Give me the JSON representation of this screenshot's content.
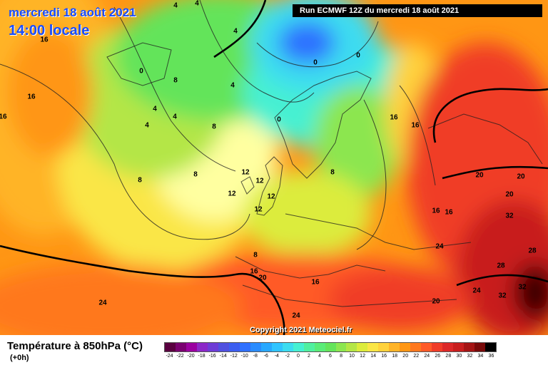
{
  "header": {
    "date": "mercredi 18 août 2021",
    "time": "14:00 locale",
    "run": "Run ECMWF 12Z du mercredi 18 août 2021"
  },
  "copyright": "Copyright 2021 Meteociel.fr",
  "legend": {
    "title": "Température à 850hPa (°C)",
    "subtitle": "(+0h)",
    "ticks": [
      "-24",
      "-22",
      "-20",
      "-18",
      "-16",
      "-14",
      "-12",
      "-10",
      "-8",
      "-6",
      "-4",
      "-2",
      "0",
      "2",
      "4",
      "6",
      "8",
      "10",
      "12",
      "14",
      "16",
      "18",
      "20",
      "22",
      "24",
      "26",
      "28",
      "30",
      "32",
      "34",
      "36"
    ],
    "colors": [
      "#5a0040",
      "#7a0070",
      "#9b00a0",
      "#8c28c8",
      "#6e3cd6",
      "#5050e0",
      "#3c5ef0",
      "#2f70ff",
      "#2a8cff",
      "#28a8ff",
      "#30c4ff",
      "#3cdcf0",
      "#46f0d2",
      "#50f0a0",
      "#5aec78",
      "#64e45a",
      "#8ce650",
      "#b4e646",
      "#dcec3c",
      "#fae646",
      "#ffd23c",
      "#ffb428",
      "#ff9614",
      "#ff781e",
      "#ff5a28",
      "#f03c28",
      "#dc2828",
      "#c81e1e",
      "#a51414",
      "#780a0a",
      "#000000"
    ]
  },
  "isotherm_labels": [
    {
      "text": "16"
    },
    {
      "text": "16"
    },
    {
      "text": "16"
    },
    {
      "text": "0"
    },
    {
      "text": "8"
    },
    {
      "text": "4"
    },
    {
      "text": "4"
    },
    {
      "text": "4"
    },
    {
      "text": "4"
    },
    {
      "text": "4"
    },
    {
      "text": "8"
    },
    {
      "text": "8"
    },
    {
      "text": "8"
    },
    {
      "text": "4"
    },
    {
      "text": "4"
    },
    {
      "text": "0"
    },
    {
      "text": "0"
    },
    {
      "text": "0"
    },
    {
      "text": "12"
    },
    {
      "text": "12"
    },
    {
      "text": "12"
    },
    {
      "text": "12"
    },
    {
      "text": "12"
    },
    {
      "text": "8"
    },
    {
      "text": "16"
    },
    {
      "text": "16"
    },
    {
      "text": "16"
    },
    {
      "text": "16"
    },
    {
      "text": "20"
    },
    {
      "text": "20"
    },
    {
      "text": "20"
    },
    {
      "text": "32"
    },
    {
      "text": "24"
    },
    {
      "text": "28"
    },
    {
      "text": "28"
    },
    {
      "text": "32"
    },
    {
      "text": "32"
    },
    {
      "text": "24"
    },
    {
      "text": "20"
    },
    {
      "text": "8"
    },
    {
      "text": "16"
    },
    {
      "text": "20"
    },
    {
      "text": "16"
    },
    {
      "text": "24"
    },
    {
      "text": "24"
    }
  ]
}
